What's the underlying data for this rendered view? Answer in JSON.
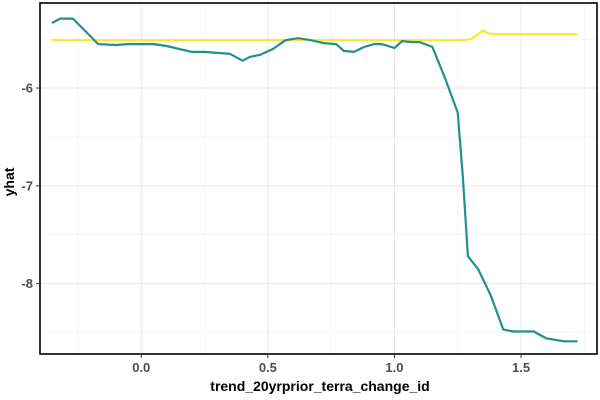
{
  "chart_data": {
    "type": "line",
    "xlabel": "trend_20yrprior_terra_change_id",
    "ylabel": "yhat",
    "xlim": [
      -0.4,
      1.8
    ],
    "ylim": [
      -8.72,
      -5.13
    ],
    "xticks": [
      {
        "value": 0.0,
        "label": "0.0"
      },
      {
        "value": 0.5,
        "label": "0.5"
      },
      {
        "value": 1.0,
        "label": "1.0"
      },
      {
        "value": 1.5,
        "label": "1.5"
      }
    ],
    "yticks": [
      {
        "value": -6,
        "label": "-6"
      },
      {
        "value": -7,
        "label": "-7"
      },
      {
        "value": -8,
        "label": "-8"
      }
    ],
    "minor_x": [
      -0.25,
      0.25,
      0.75,
      1.25,
      1.75
    ],
    "minor_y": [
      -5.5,
      -6.5,
      -7.5,
      -8.5
    ],
    "grid": true,
    "series": [
      {
        "color": "#FDE725",
        "points": [
          [
            -0.35,
            -5.51
          ],
          [
            0.0,
            -5.51
          ],
          [
            0.5,
            -5.51
          ],
          [
            1.0,
            -5.51
          ],
          [
            1.28,
            -5.51
          ],
          [
            1.31,
            -5.49
          ],
          [
            1.33,
            -5.45
          ],
          [
            1.35,
            -5.41
          ],
          [
            1.37,
            -5.44
          ],
          [
            1.4,
            -5.45
          ],
          [
            1.5,
            -5.45
          ],
          [
            1.6,
            -5.45
          ],
          [
            1.72,
            -5.45
          ]
        ]
      },
      {
        "color": "#21908C",
        "points": [
          [
            -0.35,
            -5.33
          ],
          [
            -0.32,
            -5.29
          ],
          [
            -0.27,
            -5.29
          ],
          [
            -0.22,
            -5.42
          ],
          [
            -0.17,
            -5.55
          ],
          [
            -0.1,
            -5.56
          ],
          [
            -0.05,
            -5.55
          ],
          [
            0.05,
            -5.55
          ],
          [
            0.1,
            -5.57
          ],
          [
            0.15,
            -5.6
          ],
          [
            0.2,
            -5.63
          ],
          [
            0.25,
            -5.63
          ],
          [
            0.3,
            -5.64
          ],
          [
            0.35,
            -5.65
          ],
          [
            0.4,
            -5.72
          ],
          [
            0.43,
            -5.68
          ],
          [
            0.47,
            -5.66
          ],
          [
            0.52,
            -5.6
          ],
          [
            0.57,
            -5.51
          ],
          [
            0.62,
            -5.49
          ],
          [
            0.67,
            -5.51
          ],
          [
            0.72,
            -5.54
          ],
          [
            0.77,
            -5.55
          ],
          [
            0.8,
            -5.62
          ],
          [
            0.84,
            -5.63
          ],
          [
            0.88,
            -5.58
          ],
          [
            0.92,
            -5.55
          ],
          [
            0.95,
            -5.55
          ],
          [
            1.0,
            -5.59
          ],
          [
            1.03,
            -5.52
          ],
          [
            1.07,
            -5.53
          ],
          [
            1.1,
            -5.53
          ],
          [
            1.15,
            -5.58
          ],
          [
            1.2,
            -5.9
          ],
          [
            1.25,
            -6.25
          ],
          [
            1.27,
            -6.9
          ],
          [
            1.29,
            -7.72
          ],
          [
            1.33,
            -7.85
          ],
          [
            1.38,
            -8.12
          ],
          [
            1.43,
            -8.47
          ],
          [
            1.47,
            -8.49
          ],
          [
            1.55,
            -8.49
          ],
          [
            1.6,
            -8.56
          ],
          [
            1.67,
            -8.59
          ],
          [
            1.72,
            -8.59
          ]
        ]
      }
    ]
  }
}
